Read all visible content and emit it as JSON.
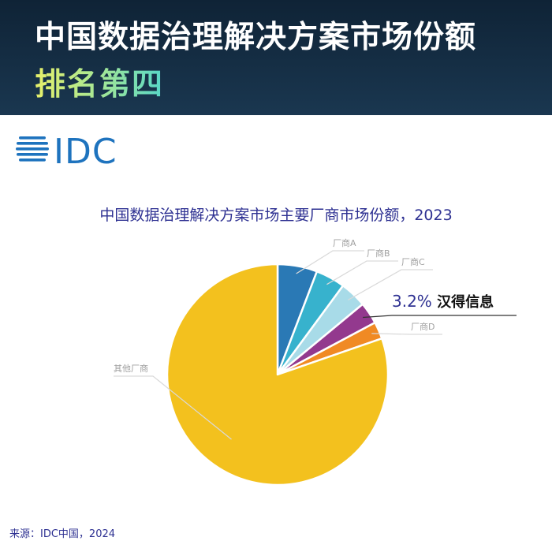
{
  "header": {
    "title": "中国数据治理解决方案市场份额",
    "subtitle": "排名第四"
  },
  "logo_text": "IDC",
  "source": "来源：IDC中国，2024",
  "colors": {
    "banner": "#132a40",
    "title_blue": "#2e3192",
    "vendor_a": "#2a79b5",
    "vendor_b": "#37b2cd",
    "vendor_c": "#a8dbe8",
    "hanyun": "#93398e",
    "vendor_d": "#f08a24",
    "others": "#f3c11e",
    "logo_blue": "#1e73be"
  },
  "chart_data": {
    "type": "pie",
    "title": "中国数据治理解决方案市场主要厂商市场份额，2023",
    "start": "12 o'clock, clockwise",
    "slices": [
      {
        "label": "厂商A",
        "value": 5.8
      },
      {
        "label": "厂商B",
        "value": 4.3
      },
      {
        "label": "厂商C",
        "value": 3.9
      },
      {
        "label": "汉得信息",
        "value": 3.2,
        "value_label": "3.2%",
        "highlight": true
      },
      {
        "label": "厂商D",
        "value": 2.5
      },
      {
        "label": "其他厂商",
        "value": 80.3
      }
    ]
  }
}
